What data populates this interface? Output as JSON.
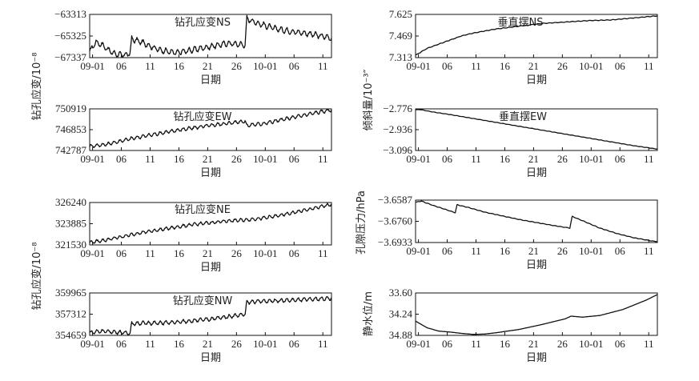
{
  "x_axis": {
    "tick_labels": [
      "09-01",
      "06",
      "11",
      "16",
      "21",
      "26",
      "10-01",
      "06",
      "11"
    ],
    "label": "日期"
  },
  "shared_ylabels": {
    "left_top": "钻孔应变/10⁻⁸",
    "left_bottom": "钻孔应变/10⁻⁸",
    "right_tilt": "倾斜量/10⁻³″",
    "right_pressure": "孔隙压力/hPa",
    "right_water": "静水位/m"
  },
  "chart_data": [
    {
      "id": "ns",
      "type": "line",
      "title": "钻孔应变NS",
      "ylim": [
        -67337,
        -63313
      ],
      "yticks": [
        -63313,
        -65325,
        -67337
      ],
      "tick_text": [
        "−63313",
        "−65325",
        "−67337"
      ],
      "inverted": false,
      "ylabel": "钻孔应变/10⁻⁸",
      "x": [
        0,
        1,
        2,
        3,
        4,
        5,
        6,
        7,
        7.3,
        9,
        12,
        15,
        18,
        21,
        24,
        26,
        27,
        27.3,
        29,
        32,
        35,
        38,
        41,
        42
      ],
      "values": [
        -66800,
        -65900,
        -66100,
        -66500,
        -66900,
        -67050,
        -67100,
        -66950,
        -65600,
        -65900,
        -66600,
        -66900,
        -66600,
        -66300,
        -66000,
        -66100,
        -66150,
        -63700,
        -64100,
        -64600,
        -64900,
        -65100,
        -65400,
        -65500
      ],
      "noise": 380
    },
    {
      "id": "ew",
      "type": "line",
      "title": "钻孔应变EW",
      "ylim": [
        742787,
        750919
      ],
      "yticks": [
        750919,
        746853,
        742787
      ],
      "tick_text": [
        "750919",
        "746853",
        "742787"
      ],
      "inverted": false,
      "ylabel": "钻孔应变/10⁻⁸",
      "x": [
        0,
        3,
        6,
        9,
        12,
        15,
        18,
        21,
        24,
        26,
        27,
        27.3,
        28,
        30,
        33,
        36,
        39,
        42
      ],
      "values": [
        743600,
        744000,
        744800,
        745500,
        746100,
        746700,
        747200,
        747700,
        748100,
        748400,
        748500,
        747600,
        747800,
        748000,
        748700,
        749400,
        750100,
        750700
      ],
      "noise": 500
    },
    {
      "id": "ne",
      "type": "line",
      "title": "钻孔应变NE",
      "ylim": [
        321530,
        326240
      ],
      "yticks": [
        326240,
        323885,
        321530
      ],
      "tick_text": [
        "326240",
        "323885",
        "321530"
      ],
      "inverted": false,
      "ylabel": "钻孔应变/10⁻⁸",
      "x": [
        0,
        3,
        6,
        9,
        12,
        15,
        18,
        21,
        24,
        27,
        30,
        33,
        36,
        39,
        42
      ],
      "values": [
        321800,
        322100,
        322500,
        322900,
        323200,
        323500,
        323800,
        324000,
        324200,
        324300,
        324500,
        324800,
        325200,
        325600,
        326050
      ],
      "noise": 260
    },
    {
      "id": "nw",
      "type": "line",
      "title": "钻孔应变NW",
      "ylim": [
        354659,
        359965
      ],
      "yticks": [
        359965,
        357312,
        354659
      ],
      "tick_text": [
        "359965",
        "357312",
        "354659"
      ],
      "inverted": false,
      "ylabel": "钻孔应变/10⁻⁸",
      "x": [
        0,
        2,
        4,
        6,
        7,
        7.3,
        9,
        12,
        15,
        18,
        21,
        24,
        26,
        27,
        27.3,
        29,
        32,
        35,
        38,
        42
      ],
      "values": [
        355000,
        355200,
        355100,
        355000,
        354950,
        356100,
        356200,
        356200,
        356300,
        356500,
        356700,
        357000,
        357200,
        357300,
        358800,
        358900,
        359000,
        359050,
        359150,
        359300
      ],
      "noise": 350
    },
    {
      "id": "pend_ns",
      "type": "line",
      "title": "垂直摆NS",
      "ylim": [
        7.313,
        7.625
      ],
      "yticks": [
        7.625,
        7.469,
        7.313
      ],
      "tick_text": [
        "7.625",
        "7.469",
        "7.313"
      ],
      "inverted": false,
      "ylabel": "倾斜量/10⁻³″",
      "x": [
        0,
        2,
        4,
        6,
        8,
        10,
        14,
        18,
        22,
        26,
        30,
        34,
        38,
        42
      ],
      "values": [
        7.33,
        7.38,
        7.41,
        7.44,
        7.47,
        7.49,
        7.52,
        7.54,
        7.56,
        7.57,
        7.58,
        7.585,
        7.6,
        7.615
      ],
      "noise": 0.003
    },
    {
      "id": "pend_ew",
      "type": "line",
      "title": "垂直摆EW",
      "ylim": [
        -3.096,
        -2.776
      ],
      "yticks": [
        -2.776,
        -2.936,
        -3.096
      ],
      "tick_text": [
        "−2.776",
        "−2.936",
        "−3.096"
      ],
      "inverted": false,
      "ylabel": "倾斜量/10⁻³″",
      "x": [
        0,
        3,
        6,
        10,
        14,
        18,
        22,
        26,
        30,
        34,
        38,
        42
      ],
      "values": [
        -2.775,
        -2.8,
        -2.82,
        -2.85,
        -2.88,
        -2.91,
        -2.94,
        -2.97,
        -3.0,
        -3.03,
        -3.06,
        -3.085
      ],
      "noise": 0.002
    },
    {
      "id": "pressure",
      "type": "line",
      "title": "",
      "ylim": [
        -3.6933,
        -3.6587
      ],
      "yticks": [
        -3.6587,
        -3.676,
        -3.6933
      ],
      "tick_text": [
        "−3.6587",
        "−3.6760",
        "−3.6933"
      ],
      "inverted": false,
      "ylabel": "孔隙压力/hPa",
      "x": [
        0,
        1,
        3,
        5,
        6.9,
        7.2,
        9,
        12,
        15,
        18,
        21,
        24,
        26.8,
        27.2,
        29,
        32,
        35,
        38,
        41,
        42
      ],
      "values": [
        -3.6605,
        -3.6595,
        -3.663,
        -3.666,
        -3.669,
        -3.6625,
        -3.6645,
        -3.6685,
        -3.6715,
        -3.6745,
        -3.677,
        -3.6795,
        -3.6815,
        -3.672,
        -3.6755,
        -3.6815,
        -3.686,
        -3.6895,
        -3.692,
        -3.6925
      ],
      "noise": 0.0003
    },
    {
      "id": "water",
      "type": "line",
      "title": "",
      "ylim": [
        33.6,
        34.88
      ],
      "yticks": [
        33.6,
        34.24,
        34.88
      ],
      "tick_text": [
        "33.60",
        "34.24",
        "34.88"
      ],
      "inverted": true,
      "ylabel": "静水位/m",
      "x": [
        0,
        2,
        4,
        6,
        8,
        10,
        12,
        14,
        18,
        22,
        26,
        27,
        29,
        32,
        36,
        40,
        42
      ],
      "values": [
        34.45,
        34.65,
        34.75,
        34.78,
        34.82,
        34.85,
        34.84,
        34.8,
        34.7,
        34.55,
        34.38,
        34.3,
        34.33,
        34.28,
        34.1,
        33.82,
        33.65
      ],
      "noise": 0.0
    }
  ]
}
